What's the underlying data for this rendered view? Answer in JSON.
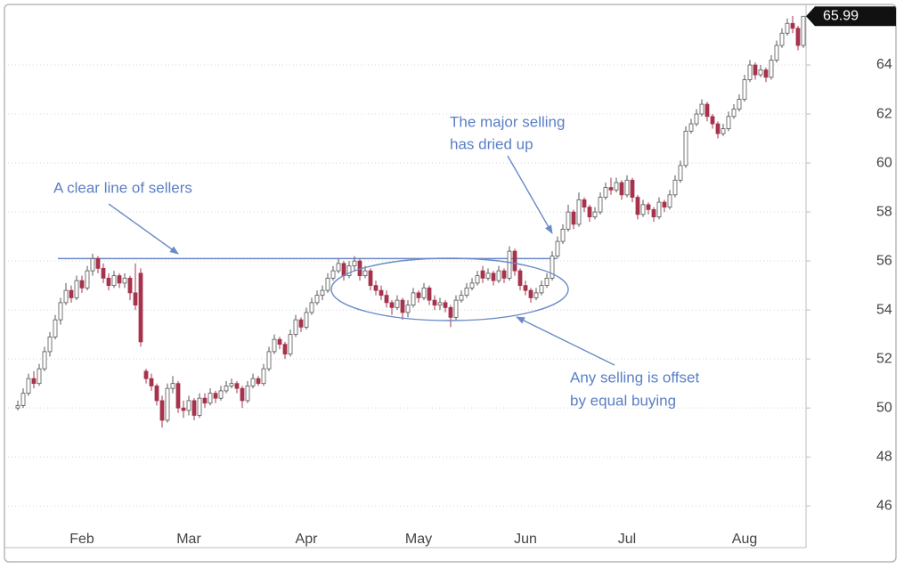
{
  "chart_data": {
    "type": "candlestick",
    "ylim": [
      44.3,
      66
    ],
    "yticks": [
      46,
      48,
      50,
      52,
      54,
      56,
      58,
      60,
      62,
      64
    ],
    "grid": true,
    "up_color": "#ffffff",
    "down_color": "#a6334d",
    "resistance": 56.1,
    "annotations": [
      "A clear line of sellers",
      "The major selling",
      "has dried up",
      "Any selling is offset",
      "by equal buying"
    ],
    "categories": [
      null,
      null,
      null,
      null,
      null,
      null,
      null,
      null,
      null,
      null,
      null,
      null,
      "Feb",
      null,
      null,
      null,
      null,
      null,
      null,
      null,
      null,
      null,
      null,
      null,
      null,
      null,
      null,
      null,
      null,
      null,
      null,
      null,
      "Mar",
      null,
      null,
      null,
      null,
      null,
      null,
      null,
      null,
      null,
      null,
      null,
      null,
      null,
      null,
      null,
      null,
      null,
      null,
      null,
      null,
      null,
      "Apr",
      null,
      null,
      null,
      null,
      null,
      null,
      null,
      null,
      null,
      null,
      null,
      null,
      null,
      null,
      null,
      null,
      null,
      null,
      null,
      null,
      "May",
      null,
      null,
      null,
      null,
      null,
      null,
      null,
      null,
      null,
      null,
      null,
      null,
      null,
      null,
      null,
      null,
      null,
      null,
      null,
      "Jun",
      null,
      null,
      null,
      null,
      null,
      null,
      null,
      null,
      null,
      null,
      null,
      null,
      null,
      null,
      null,
      null,
      null,
      null,
      "Jul",
      null,
      null,
      null,
      null,
      null,
      null,
      null,
      null,
      null,
      null,
      null,
      null,
      null,
      null,
      null,
      null,
      null,
      null,
      null,
      null,
      null,
      "Aug",
      null,
      null,
      null,
      null,
      null,
      null,
      null,
      null,
      null,
      null,
      null
    ],
    "candles": [
      [
        50.0,
        50.3,
        49.9,
        50.1
      ],
      [
        50.1,
        50.8,
        50.0,
        50.6
      ],
      [
        50.6,
        51.4,
        50.5,
        51.2
      ],
      [
        51.2,
        51.5,
        50.8,
        51.0
      ],
      [
        51.0,
        51.8,
        50.9,
        51.6
      ],
      [
        51.6,
        52.5,
        51.5,
        52.3
      ],
      [
        52.3,
        53.1,
        52.1,
        52.9
      ],
      [
        52.9,
        53.8,
        52.8,
        53.6
      ],
      [
        53.6,
        54.5,
        53.4,
        54.3
      ],
      [
        54.3,
        55.1,
        54.2,
        54.8
      ],
      [
        54.8,
        55.0,
        54.3,
        54.5
      ],
      [
        54.5,
        55.4,
        54.4,
        55.2
      ],
      [
        55.2,
        55.4,
        54.7,
        54.9
      ],
      [
        54.9,
        55.8,
        54.8,
        55.6
      ],
      [
        55.6,
        56.3,
        55.4,
        56.1
      ],
      [
        56.1,
        56.2,
        55.5,
        55.7
      ],
      [
        55.7,
        55.9,
        55.1,
        55.3
      ],
      [
        55.3,
        55.5,
        54.8,
        55.0
      ],
      [
        55.0,
        55.6,
        54.9,
        55.4
      ],
      [
        55.4,
        55.5,
        54.9,
        55.1
      ],
      [
        55.1,
        55.5,
        54.9,
        55.3
      ],
      [
        55.3,
        55.4,
        54.4,
        54.7
      ],
      [
        54.7,
        55.9,
        54.0,
        54.2
      ],
      [
        55.5,
        55.7,
        52.5,
        52.7
      ],
      [
        51.5,
        51.6,
        51.0,
        51.2
      ],
      [
        51.2,
        51.4,
        50.7,
        50.9
      ],
      [
        50.9,
        51.0,
        50.1,
        50.3
      ],
      [
        50.3,
        50.5,
        49.2,
        49.5
      ],
      [
        49.5,
        51.0,
        49.4,
        50.8
      ],
      [
        50.8,
        51.3,
        50.6,
        51.0
      ],
      [
        51.0,
        51.1,
        49.8,
        50.0
      ],
      [
        50.0,
        50.3,
        49.6,
        49.9
      ],
      [
        49.9,
        50.5,
        49.7,
        50.3
      ],
      [
        50.3,
        50.4,
        49.5,
        49.7
      ],
      [
        49.7,
        50.6,
        49.6,
        50.4
      ],
      [
        50.4,
        50.6,
        50.0,
        50.2
      ],
      [
        50.2,
        50.8,
        50.1,
        50.6
      ],
      [
        50.6,
        50.7,
        50.2,
        50.4
      ],
      [
        50.4,
        50.9,
        50.3,
        50.7
      ],
      [
        50.7,
        51.1,
        50.6,
        50.9
      ],
      [
        50.9,
        51.2,
        50.8,
        51.0
      ],
      [
        51.0,
        51.1,
        50.6,
        50.8
      ],
      [
        50.8,
        50.9,
        50.0,
        50.3
      ],
      [
        50.3,
        51.1,
        50.2,
        50.9
      ],
      [
        50.9,
        51.4,
        50.8,
        51.2
      ],
      [
        51.2,
        51.3,
        50.9,
        51.0
      ],
      [
        51.0,
        51.8,
        50.9,
        51.6
      ],
      [
        51.6,
        52.5,
        51.5,
        52.3
      ],
      [
        52.3,
        53.0,
        52.2,
        52.8
      ],
      [
        52.8,
        52.9,
        52.4,
        52.6
      ],
      [
        52.6,
        52.7,
        52.0,
        52.2
      ],
      [
        52.2,
        53.2,
        52.1,
        53.0
      ],
      [
        53.0,
        53.8,
        52.9,
        53.6
      ],
      [
        53.6,
        53.7,
        53.1,
        53.3
      ],
      [
        53.3,
        54.1,
        53.2,
        53.9
      ],
      [
        53.9,
        54.5,
        53.8,
        54.3
      ],
      [
        54.3,
        54.8,
        54.2,
        54.6
      ],
      [
        54.6,
        55.0,
        54.4,
        54.8
      ],
      [
        54.8,
        55.5,
        54.7,
        55.3
      ],
      [
        55.3,
        55.8,
        55.2,
        55.6
      ],
      [
        55.6,
        56.1,
        55.5,
        55.9
      ],
      [
        55.9,
        56.0,
        55.2,
        55.4
      ],
      [
        55.4,
        56.0,
        55.3,
        55.8
      ],
      [
        55.8,
        56.2,
        55.6,
        56.0
      ],
      [
        56.0,
        56.1,
        55.2,
        55.4
      ],
      [
        55.4,
        55.8,
        55.3,
        55.6
      ],
      [
        55.6,
        55.7,
        54.8,
        55.0
      ],
      [
        55.0,
        55.2,
        54.6,
        54.8
      ],
      [
        54.8,
        55.0,
        54.4,
        54.6
      ],
      [
        54.6,
        54.8,
        54.1,
        54.3
      ],
      [
        54.3,
        54.4,
        53.8,
        54.1
      ],
      [
        54.1,
        54.6,
        54.0,
        54.4
      ],
      [
        54.4,
        54.5,
        53.6,
        53.9
      ],
      [
        53.9,
        54.4,
        53.7,
        54.2
      ],
      [
        54.2,
        54.9,
        54.1,
        54.7
      ],
      [
        54.7,
        54.8,
        54.3,
        54.5
      ],
      [
        54.5,
        55.1,
        54.4,
        54.9
      ],
      [
        54.9,
        55.0,
        54.2,
        54.4
      ],
      [
        54.4,
        54.6,
        54.0,
        54.2
      ],
      [
        54.2,
        54.5,
        54.0,
        54.3
      ],
      [
        54.3,
        54.4,
        53.9,
        54.1
      ],
      [
        54.1,
        54.2,
        53.3,
        53.7
      ],
      [
        53.7,
        54.6,
        53.6,
        54.4
      ],
      [
        54.4,
        54.8,
        54.3,
        54.6
      ],
      [
        54.6,
        55.1,
        54.5,
        54.9
      ],
      [
        54.9,
        55.3,
        54.8,
        55.1
      ],
      [
        55.1,
        55.6,
        55.0,
        55.4
      ],
      [
        55.6,
        55.8,
        55.1,
        55.3
      ],
      [
        55.3,
        55.7,
        55.2,
        55.5
      ],
      [
        55.5,
        55.6,
        55.0,
        55.2
      ],
      [
        55.2,
        55.8,
        55.1,
        55.6
      ],
      [
        55.6,
        55.7,
        55.1,
        55.3
      ],
      [
        55.3,
        56.6,
        55.2,
        56.4
      ],
      [
        56.4,
        56.5,
        55.4,
        55.6
      ],
      [
        55.6,
        55.7,
        54.8,
        55.0
      ],
      [
        55.0,
        55.2,
        54.6,
        54.8
      ],
      [
        54.8,
        54.9,
        54.3,
        54.5
      ],
      [
        54.5,
        54.9,
        54.4,
        54.7
      ],
      [
        54.7,
        55.2,
        54.6,
        55.0
      ],
      [
        55.0,
        55.5,
        54.9,
        55.3
      ],
      [
        55.3,
        56.4,
        55.2,
        56.2
      ],
      [
        56.2,
        57.0,
        56.1,
        56.8
      ],
      [
        56.8,
        57.5,
        56.7,
        57.3
      ],
      [
        57.3,
        58.3,
        57.2,
        58.0
      ],
      [
        58.0,
        58.1,
        57.3,
        57.5
      ],
      [
        57.5,
        58.8,
        57.4,
        58.5
      ],
      [
        58.5,
        58.6,
        58.0,
        58.2
      ],
      [
        58.2,
        58.3,
        57.6,
        57.8
      ],
      [
        57.8,
        58.2,
        57.7,
        58.0
      ],
      [
        58.0,
        58.8,
        57.9,
        58.6
      ],
      [
        58.6,
        59.2,
        58.5,
        59.0
      ],
      [
        59.0,
        59.4,
        58.7,
        58.9
      ],
      [
        58.9,
        59.4,
        58.8,
        59.2
      ],
      [
        59.2,
        59.3,
        58.5,
        58.7
      ],
      [
        58.7,
        59.5,
        58.6,
        59.3
      ],
      [
        59.3,
        59.4,
        58.4,
        58.6
      ],
      [
        58.6,
        58.7,
        57.7,
        57.9
      ],
      [
        57.9,
        58.5,
        57.8,
        58.3
      ],
      [
        58.3,
        58.4,
        57.9,
        58.1
      ],
      [
        58.1,
        58.2,
        57.6,
        57.8
      ],
      [
        57.8,
        58.6,
        57.7,
        58.4
      ],
      [
        58.4,
        58.5,
        58.0,
        58.2
      ],
      [
        58.2,
        58.9,
        58.1,
        58.7
      ],
      [
        58.7,
        59.5,
        58.6,
        59.3
      ],
      [
        59.3,
        60.1,
        59.2,
        59.9
      ],
      [
        59.9,
        61.5,
        59.8,
        61.3
      ],
      [
        61.3,
        61.8,
        61.2,
        61.6
      ],
      [
        61.6,
        62.2,
        61.5,
        62.0
      ],
      [
        62.0,
        62.6,
        61.9,
        62.4
      ],
      [
        62.4,
        62.5,
        61.7,
        61.9
      ],
      [
        61.9,
        62.0,
        61.4,
        61.6
      ],
      [
        61.6,
        61.7,
        61.0,
        61.2
      ],
      [
        61.2,
        61.6,
        61.1,
        61.4
      ],
      [
        61.4,
        62.1,
        61.3,
        61.9
      ],
      [
        61.9,
        62.4,
        61.8,
        62.2
      ],
      [
        62.2,
        62.8,
        62.1,
        62.6
      ],
      [
        62.6,
        63.6,
        62.5,
        63.4
      ],
      [
        63.4,
        64.2,
        63.3,
        64.0
      ],
      [
        64.0,
        64.1,
        63.4,
        63.6
      ],
      [
        63.6,
        64.0,
        63.5,
        63.8
      ],
      [
        63.8,
        63.9,
        63.3,
        63.5
      ],
      [
        63.5,
        64.4,
        63.4,
        64.2
      ],
      [
        64.2,
        65.0,
        64.1,
        64.8
      ],
      [
        64.8,
        65.5,
        64.7,
        65.3
      ],
      [
        65.3,
        65.9,
        65.2,
        65.7
      ],
      [
        65.7,
        66.0,
        65.3,
        65.5
      ],
      [
        65.5,
        65.6,
        64.6,
        64.8
      ],
      [
        64.8,
        66.0,
        64.7,
        65.99
      ]
    ]
  }
}
